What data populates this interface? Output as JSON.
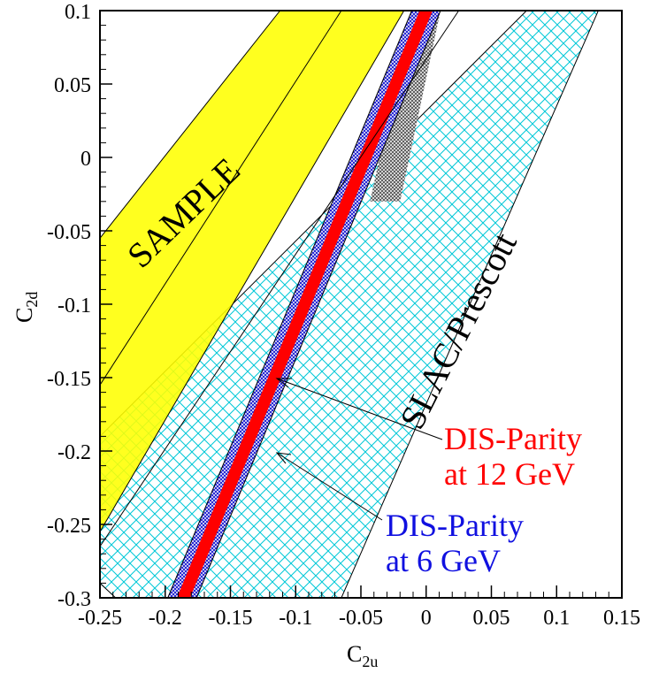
{
  "chart_data": {
    "type": "area",
    "title": "",
    "xlabel": {
      "main": "C",
      "sub": "2u"
    },
    "ylabel": {
      "main": "C",
      "sub": "2d"
    },
    "xlim": [
      -0.25,
      0.15
    ],
    "ylim": [
      -0.3,
      0.1
    ],
    "x_ticks": [
      -0.25,
      -0.2,
      -0.15,
      -0.1,
      -0.05,
      0,
      0.05,
      0.1,
      0.15
    ],
    "x_tick_labels": [
      "-0.25",
      "-0.2",
      "-0.15",
      "-0.1",
      "-0.05",
      "0",
      "0.05",
      "0.1",
      "0.15"
    ],
    "y_ticks": [
      0.1,
      0.05,
      0,
      -0.05,
      -0.1,
      -0.15,
      -0.2,
      -0.25,
      -0.3
    ],
    "y_tick_labels": [
      "0.1",
      "0.05",
      "0",
      "-0.05",
      "-0.1",
      "-0.15",
      "-0.2",
      "-0.25",
      "-0.3"
    ],
    "grid": false,
    "series": [
      {
        "name": "SLAC/Prescott",
        "color": "#00c8d8",
        "fill": "crosshatch",
        "polygon": [
          [
            -0.25,
            -0.19
          ],
          [
            -0.25,
            -0.29
          ],
          [
            -0.238,
            -0.3
          ],
          [
            -0.065,
            -0.3
          ],
          [
            0.132,
            0.1
          ],
          [
            0.077,
            0.1
          ]
        ]
      },
      {
        "name": "SAMPLE",
        "color": "#ffff00",
        "fill": "solid",
        "polygon": [
          [
            -0.25,
            -0.055
          ],
          [
            -0.25,
            -0.255
          ],
          [
            -0.017,
            0.1
          ],
          [
            -0.112,
            0.1
          ]
        ]
      },
      {
        "name": "DIS-Parity at 6 GeV",
        "color": "#2020e0",
        "fill": "crosshatch",
        "polygon": [
          [
            -0.198,
            -0.3
          ],
          [
            -0.011,
            0.1
          ],
          [
            0.011,
            0.1
          ],
          [
            -0.176,
            -0.3
          ]
        ]
      },
      {
        "name": "DIS-Parity at 12 GeV",
        "color": "#ff0000",
        "fill": "solid",
        "polygon": [
          [
            -0.191,
            -0.3
          ],
          [
            -0.005,
            0.1
          ],
          [
            0.005,
            0.1
          ],
          [
            -0.181,
            -0.3
          ]
        ]
      }
    ],
    "labels": {
      "sample": "SAMPLE",
      "slac": "SLAC/Prescott",
      "dis12_line1": "DIS-Parity",
      "dis12_line2": "at 12 GeV",
      "dis6_line1": "DIS-Parity",
      "dis6_line2": "at 6 GeV"
    },
    "label_colors": {
      "dis12": "#ff0000",
      "dis6": "#1010e0"
    }
  }
}
